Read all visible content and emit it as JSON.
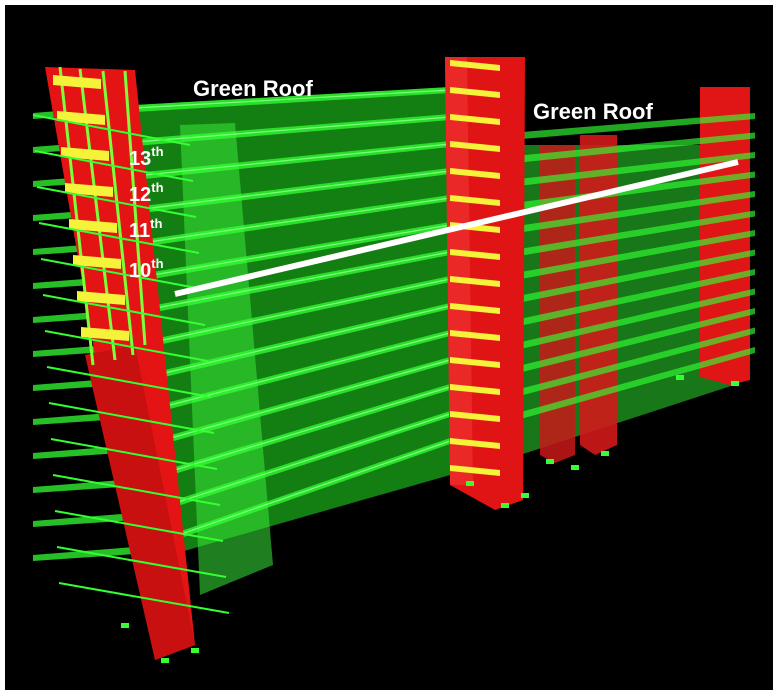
{
  "scene": {
    "colors": {
      "background": "#000000",
      "slab": "#33ff33",
      "core": "#e01515",
      "frame": "#7cff3a",
      "highlight": "#f5f23a",
      "line": "#ffffff"
    }
  },
  "labels": {
    "roof_left": "Green Roof",
    "roof_right": "Green Roof",
    "floors": [
      {
        "num": "13",
        "sup": "th"
      },
      {
        "num": "12",
        "sup": "th"
      },
      {
        "num": "11",
        "sup": "th"
      },
      {
        "num": "10",
        "sup": "th"
      }
    ]
  }
}
